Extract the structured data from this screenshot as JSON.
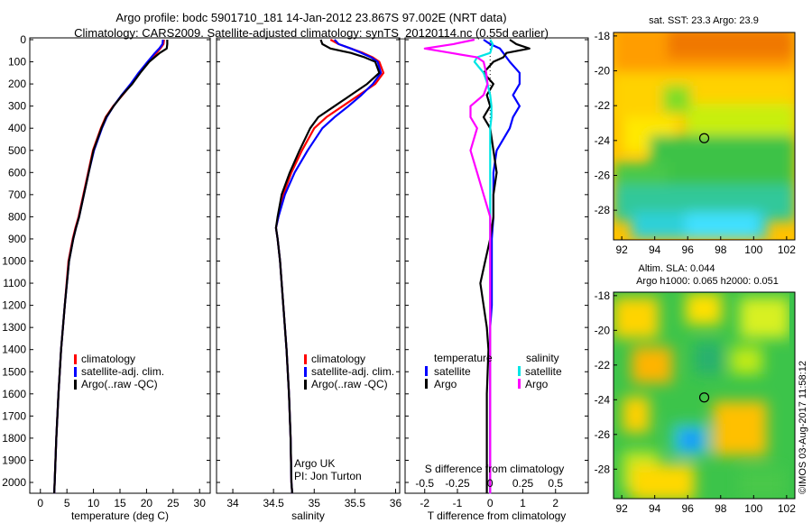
{
  "header": {
    "title_line1": "Argo profile: bodc 5901710_181 14-Jan-2012 23.867S 97.002E (NRT data)",
    "title_line2": "Climatology: CARS2009. Satellite-adjusted climatology: synTS_20120114.nc (0.55d earlier)"
  },
  "colors": {
    "climatology": "#ff0000",
    "satellite": "#0000ff",
    "argo": "#000000",
    "sal_satellite": "#00e5e5",
    "sal_argo": "#ff00ff"
  },
  "chart_data": [
    {
      "type": "line",
      "panel": "temperature",
      "xlabel": "temperature (deg C)",
      "xlim": [
        -2,
        32
      ],
      "xticks": [
        0,
        5,
        10,
        15,
        20,
        25,
        30
      ],
      "ylim": [
        2080,
        0
      ],
      "yticks": [
        0,
        100,
        200,
        300,
        400,
        500,
        600,
        700,
        800,
        900,
        1000,
        1100,
        1200,
        1300,
        1400,
        1500,
        1600,
        1700,
        1800,
        1900,
        2000
      ],
      "legend": [
        "climatology",
        "satellite-adj. clim.",
        "Argo(..raw -QC)"
      ],
      "depth": [
        0,
        20,
        40,
        60,
        80,
        100,
        150,
        200,
        250,
        300,
        350,
        400,
        500,
        600,
        700,
        800,
        850,
        900,
        1000,
        1200,
        1400,
        1600,
        1800,
        2000,
        2050
      ],
      "series": [
        {
          "name": "climatology",
          "color": "#ff0000",
          "values": [
            23.3,
            23.2,
            22.6,
            21.9,
            21.1,
            20.4,
            18.7,
            17.2,
            15.5,
            13.7,
            12.3,
            11.4,
            9.9,
            9.0,
            8.1,
            7.2,
            6.6,
            6.1,
            5.3,
            4.6,
            3.9,
            3.4,
            3.0,
            2.7,
            2.6
          ]
        },
        {
          "name": "satellite-adj. clim.",
          "color": "#0000ff",
          "values": [
            23.1,
            23.0,
            22.4,
            21.6,
            20.9,
            20.2,
            18.5,
            17.0,
            15.3,
            13.8,
            12.5,
            11.6,
            10.1,
            9.1,
            8.2,
            7.3,
            6.7,
            6.2,
            5.4,
            4.6,
            3.9,
            3.4,
            3.0,
            2.7,
            2.6
          ]
        },
        {
          "name": "Argo(..raw -QC)",
          "color": "#000000",
          "values": [
            23.9,
            23.9,
            23.8,
            22.5,
            21.5,
            20.5,
            18.8,
            17.3,
            15.4,
            13.8,
            12.4,
            11.5,
            10.0,
            9.1,
            8.2,
            7.3,
            6.7,
            6.2,
            5.4,
            4.6,
            3.9,
            3.4,
            3.0,
            2.7,
            2.6
          ]
        }
      ]
    },
    {
      "type": "line",
      "panel": "salinity",
      "xlabel": "salinity",
      "xlim": [
        33.8,
        36.05
      ],
      "xticks": [
        34,
        34.5,
        35,
        35.5,
        36
      ],
      "ylim": [
        2080,
        0
      ],
      "legend": [
        "climatology",
        "satellite-adj. clim.",
        "Argo(..raw -QC)"
      ],
      "annotation": [
        "Argo UK",
        "PI: Jon Turton"
      ],
      "depth": [
        0,
        20,
        40,
        60,
        80,
        100,
        150,
        200,
        250,
        300,
        350,
        400,
        500,
        600,
        700,
        800,
        850,
        900,
        1000,
        1200,
        1400,
        1600,
        1800,
        2000,
        2050
      ],
      "series": [
        {
          "name": "climatology",
          "color": "#ff0000",
          "values": [
            35.2,
            35.3,
            35.45,
            35.6,
            35.72,
            35.8,
            35.85,
            35.75,
            35.55,
            35.35,
            35.15,
            35.0,
            34.85,
            34.72,
            34.62,
            34.56,
            34.53,
            34.55,
            34.58,
            34.62,
            34.66,
            34.69,
            34.71,
            34.72,
            34.73
          ]
        },
        {
          "name": "satellite-adj. clim.",
          "color": "#0000ff",
          "values": [
            35.25,
            35.3,
            35.45,
            35.58,
            35.7,
            35.78,
            35.82,
            35.72,
            35.58,
            35.42,
            35.25,
            35.1,
            34.92,
            34.76,
            34.64,
            34.56,
            34.53,
            34.55,
            34.58,
            34.62,
            34.66,
            34.69,
            34.71,
            34.72,
            34.73
          ]
        },
        {
          "name": "Argo(..raw -QC)",
          "color": "#000000",
          "values": [
            35.08,
            35.1,
            35.2,
            35.45,
            35.62,
            35.75,
            35.8,
            35.65,
            35.45,
            35.25,
            35.05,
            34.95,
            34.82,
            34.7,
            34.6,
            34.55,
            34.53,
            34.55,
            34.58,
            34.62,
            34.66,
            34.69,
            34.71,
            34.72,
            34.73
          ]
        }
      ]
    },
    {
      "type": "line",
      "panel": "differences",
      "xlabel": "T difference from climatology",
      "xlabel2": "S difference from climatology",
      "xlim": [
        -2.6,
        3.0
      ],
      "xticks": [
        -2,
        -1,
        0,
        1,
        2
      ],
      "xticks_s_values": [
        -0.5,
        -0.25,
        0,
        0.25,
        0.5
      ],
      "xticks_s_labels": [
        "-0.5",
        "-0.25",
        "0",
        "0.25",
        "0.5"
      ],
      "legend_temperature": [
        "temperature",
        "satellite",
        "Argo"
      ],
      "legend_salinity": [
        "salinity",
        "satellite",
        "Argo"
      ],
      "depth": [
        0,
        20,
        40,
        60,
        80,
        100,
        150,
        200,
        250,
        300,
        350,
        400,
        500,
        600,
        700,
        800,
        900,
        1000,
        1100,
        1200,
        1300,
        1400,
        1600,
        1800,
        2000,
        2050
      ],
      "series": [
        {
          "name": "temperature satellite",
          "color": "#0000ff",
          "values": [
            -0.2,
            0.0,
            0.3,
            0.4,
            0.5,
            0.6,
            0.9,
            0.9,
            0.7,
            0.9,
            0.7,
            0.6,
            0.2,
            0.1,
            0.1,
            0.1,
            0.05,
            0.05,
            0.05,
            0.05,
            0.0,
            0.0,
            0.0,
            0.0,
            0.0,
            0.0
          ]
        },
        {
          "name": "temperature Argo",
          "color": "#000000",
          "values": [
            0.6,
            0.8,
            1.2,
            0.5,
            0.4,
            0.1,
            -0.2,
            0.1,
            -0.1,
            0.0,
            -0.2,
            0.0,
            0.1,
            0.2,
            0.1,
            0.1,
            0.0,
            -0.15,
            -0.3,
            -0.2,
            -0.1,
            -0.05,
            -0.1,
            -0.1,
            -0.1,
            -0.1
          ]
        },
        {
          "name": "salinity satellite",
          "color": "#00e5e5",
          "values": [
            0.0,
            0.02,
            0.01,
            0.0,
            -0.1,
            -0.12,
            -0.05,
            -0.02,
            0.0,
            0.01,
            0.01,
            0.0,
            0.0,
            0.0,
            0.0,
            0.0,
            0.0,
            0.0,
            0.0,
            0.0,
            0.0,
            0.0,
            0.0,
            0.0,
            0.0,
            0.0
          ]
        },
        {
          "name": "salinity Argo",
          "color": "#ff00ff",
          "values": [
            -0.12,
            -0.28,
            -0.5,
            -0.3,
            -0.1,
            -0.05,
            -0.03,
            -0.02,
            -0.05,
            -0.15,
            -0.15,
            -0.1,
            -0.15,
            -0.1,
            -0.05,
            0.0,
            0.0,
            0.0,
            0.0,
            0.0,
            0.0,
            0.0,
            0.0,
            0.0,
            0.0,
            0.0
          ]
        }
      ]
    },
    {
      "type": "heatmap",
      "panel": "sst_map",
      "title": "sat. SST: 23.3  Argo: 23.9",
      "xticks": [
        92,
        94,
        96,
        98,
        100,
        102
      ],
      "yticks": [
        -18,
        -20,
        -22,
        -24,
        -26,
        -28
      ],
      "xlim": [
        91.5,
        102.5
      ],
      "ylim": [
        -29.7,
        -17.8
      ],
      "marker": {
        "lon": 97.002,
        "lat": -23.867
      }
    },
    {
      "type": "heatmap",
      "panel": "sla_map",
      "title_line1": "Altim. SLA: 0.044",
      "title_line2": "Argo h1000: 0.065 h2000: 0.051",
      "xticks": [
        92,
        94,
        96,
        98,
        100,
        102
      ],
      "yticks": [
        -18,
        -20,
        -22,
        -24,
        -26,
        -28
      ],
      "xlim": [
        91.5,
        102.5
      ],
      "ylim": [
        -29.7,
        -17.8
      ],
      "marker": {
        "lon": 97.002,
        "lat": -23.867
      }
    }
  ],
  "footer": {
    "credit": "©IMOS 03-Aug-2017 11:58:12"
  }
}
